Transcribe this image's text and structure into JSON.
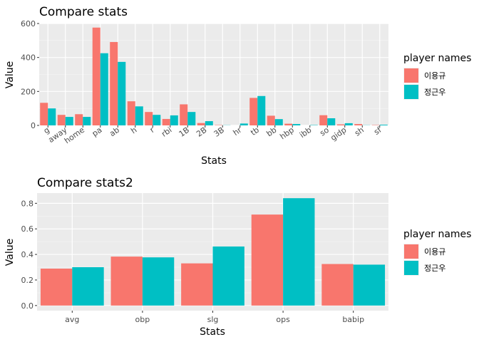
{
  "chart_data": [
    {
      "type": "bar",
      "title": "Compare stats",
      "xlabel": "Stats",
      "ylabel": "Value",
      "ylim": [
        0,
        600
      ],
      "yticks": [
        0,
        200,
        400,
        600
      ],
      "categories": [
        "g",
        "away",
        "home",
        "pa",
        "ab",
        "h",
        "r",
        "rbi",
        "1B",
        "2B",
        "3B",
        "hr",
        "tb",
        "bb",
        "hbp",
        "ibb",
        "so",
        "gidp",
        "sh",
        "sf"
      ],
      "x_tick_rotation": "angled",
      "grid": true,
      "legend": {
        "title": "player names",
        "placement": "right"
      },
      "series": [
        {
          "name": "이용규",
          "color": "#F8766D",
          "values": [
            133,
            62,
            66,
            576,
            491,
            142,
            79,
            38,
            124,
            14,
            2,
            0,
            162,
            57,
            10,
            0,
            60,
            6,
            8,
            2
          ]
        },
        {
          "name": "정근우",
          "color": "#00BFC4",
          "values": [
            100,
            50,
            50,
            425,
            374,
            112,
            62,
            59,
            79,
            25,
            1,
            11,
            173,
            37,
            8,
            2,
            42,
            13,
            1,
            4
          ]
        }
      ]
    },
    {
      "type": "bar",
      "title": "Compare stats2",
      "xlabel": "Stats",
      "ylabel": "Value",
      "ylim": [
        -0.04,
        0.88
      ],
      "yticks": [
        0.0,
        0.2,
        0.4,
        0.6,
        0.8
      ],
      "ytick_labels": [
        "0.0",
        "0.2",
        "0.4",
        "0.6",
        "0.8"
      ],
      "categories": [
        "avg",
        "obp",
        "slg",
        "ops",
        "babip"
      ],
      "grid": true,
      "legend": {
        "title": "player names",
        "placement": "right"
      },
      "series": [
        {
          "name": "이용규",
          "color": "#F8766D",
          "values": [
            0.289,
            0.383,
            0.33,
            0.712,
            0.325
          ]
        },
        {
          "name": "정근우",
          "color": "#00BFC4",
          "values": [
            0.3,
            0.377,
            0.462,
            0.84,
            0.32
          ]
        }
      ]
    }
  ]
}
